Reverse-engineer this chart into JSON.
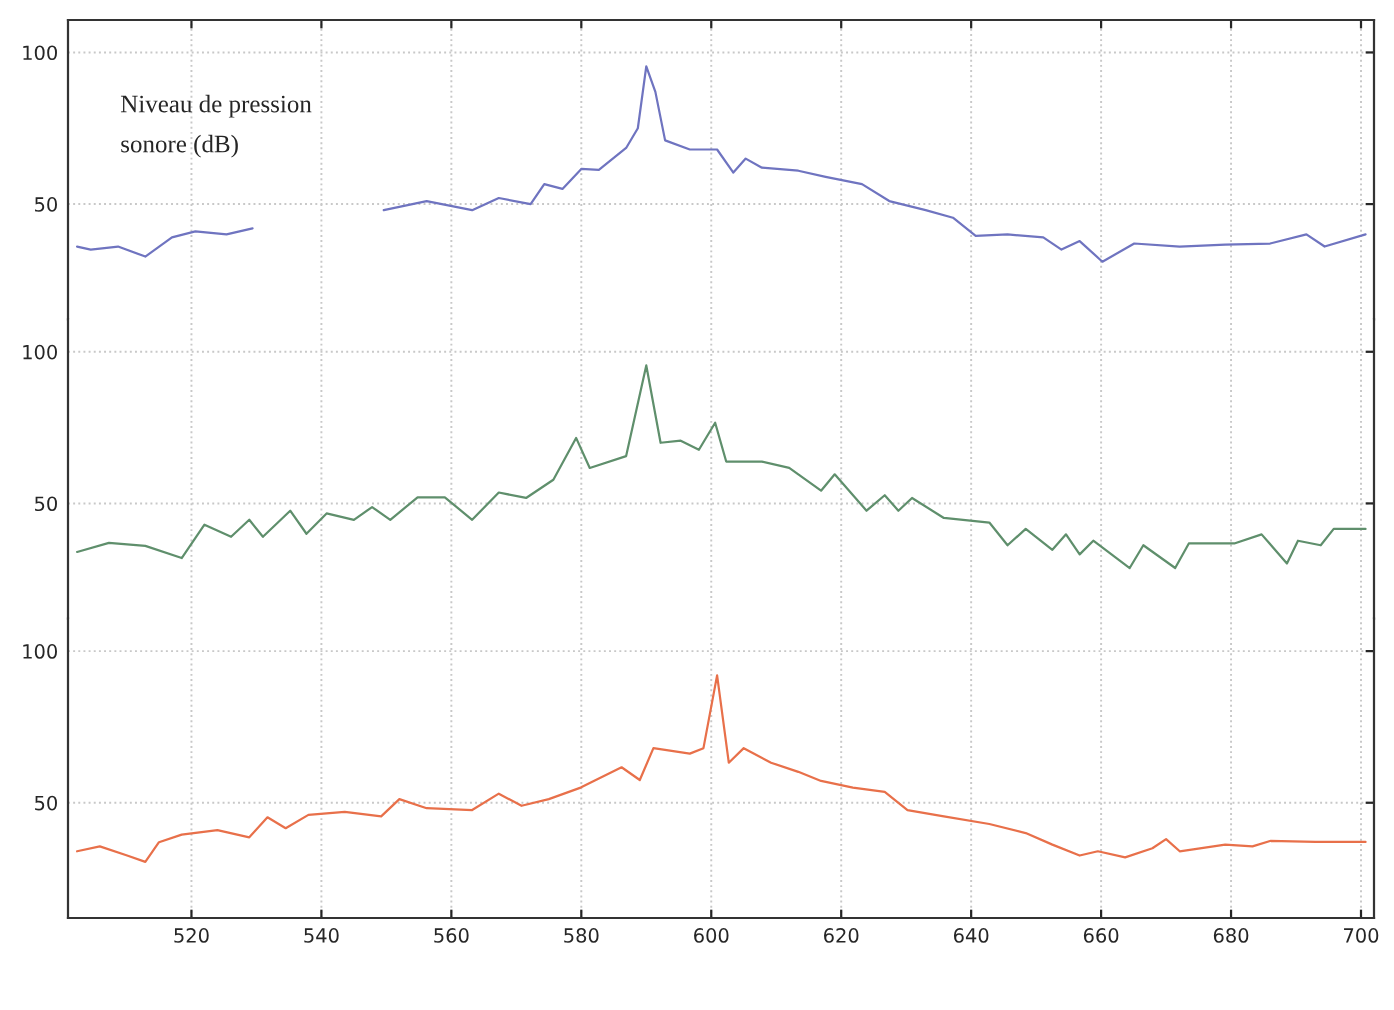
{
  "chart_data": [
    {
      "type": "line",
      "annotations": [
        "Niveau de pression\nsonore (dB)"
      ],
      "xlim": [
        501,
        702
      ],
      "xticks": [
        520,
        540,
        560,
        580,
        600,
        620,
        640,
        660,
        680,
        700
      ],
      "ylim": [
        12,
        110.7
      ],
      "yticks": [
        50,
        100
      ],
      "grid": true,
      "tick_labels": "y",
      "x": [
        502.4,
        504.5,
        508.7,
        512.9,
        517,
        520.6,
        525.4,
        529.4,
        539,
        549.6,
        556.2,
        563.2,
        567.3,
        572.2,
        574.3,
        577.1,
        580,
        582.7,
        586.9,
        588.7,
        590,
        591.4,
        592.9,
        596.7,
        600.9,
        603.4,
        605.3,
        607.8,
        613.4,
        617.6,
        623.2,
        627.4,
        633,
        637.2,
        640.7,
        645.6,
        651.1,
        653.9,
        656.7,
        660.2,
        665.1,
        672.1,
        679.1,
        686,
        691.6,
        694.4,
        700.7
      ],
      "series": [
        {
          "color": "#6f74c0",
          "values": [
            36,
            35,
            36,
            32.7,
            39,
            41,
            40,
            42,
            null,
            48,
            51,
            48,
            52,
            50,
            56.6,
            55,
            61.6,
            61.3,
            68.5,
            75,
            95.4,
            87,
            71,
            68,
            68,
            60.4,
            65,
            62,
            61,
            59,
            56.6,
            51,
            48,
            45.5,
            39.5,
            40,
            39,
            35,
            37.8,
            31,
            37,
            36,
            36.6,
            37,
            40,
            36,
            40
          ]
        }
      ]
    },
    {
      "type": "line",
      "xlim": [
        501,
        702
      ],
      "xticks": [
        520,
        540,
        560,
        580,
        600,
        620,
        640,
        660,
        680,
        700
      ],
      "ylim": [
        12,
        110.7
      ],
      "yticks": [
        50,
        100
      ],
      "grid": true,
      "tick_labels": "y",
      "x": [
        502.4,
        507.3,
        512.9,
        518.5,
        522,
        526.1,
        528.9,
        531,
        535.2,
        537.7,
        540.8,
        545,
        547.8,
        550.6,
        554.8,
        559,
        563.2,
        567.3,
        571.5,
        575.7,
        579.2,
        581.3,
        586.9,
        590,
        592.2,
        595.3,
        598.1,
        600.6,
        602.3,
        607.8,
        612,
        616.9,
        619,
        623.9,
        626.7,
        628.8,
        630.9,
        635.8,
        642.8,
        645.6,
        648.4,
        652.5,
        654.6,
        656.7,
        658.8,
        664.4,
        666.5,
        671.4,
        673.5,
        680.5,
        684.7,
        688.6,
        690.3,
        693.8,
        695.8,
        700.7
      ],
      "series": [
        {
          "color": "#5f8f6c",
          "values": [
            34,
            37,
            36,
            32,
            43,
            39,
            44.6,
            39,
            47.6,
            40,
            46.7,
            44.6,
            48.8,
            44.6,
            52,
            52,
            44.6,
            53.6,
            51.8,
            57.8,
            71.6,
            61.7,
            65.6,
            95.5,
            70,
            70.7,
            67.7,
            76.6,
            63.8,
            63.8,
            61.7,
            54.2,
            59.6,
            47.6,
            52.7,
            47.6,
            51.8,
            45.2,
            43.7,
            36.2,
            41.6,
            34.7,
            39.8,
            33.2,
            37.7,
            28.7,
            36.2,
            28.7,
            36.8,
            36.8,
            39.8,
            30.2,
            37.7,
            36.2,
            41.6,
            41.6
          ]
        }
      ]
    },
    {
      "type": "line",
      "xlim": [
        501,
        702
      ],
      "xticks": [
        520,
        540,
        560,
        580,
        600,
        620,
        640,
        660,
        680,
        700
      ],
      "ylim": [
        12,
        110.7
      ],
      "yticks": [
        50,
        100
      ],
      "grid": true,
      "x": [
        502.4,
        505.9,
        510.1,
        512.9,
        515,
        518.5,
        524,
        528.9,
        531.7,
        534.5,
        538,
        543.6,
        549.2,
        552,
        556.2,
        563.2,
        567.3,
        570.8,
        575,
        579.9,
        586.2,
        589,
        591.1,
        596.7,
        598.8,
        600.9,
        602.7,
        605,
        609.2,
        613.4,
        616.9,
        621.8,
        626.7,
        630.2,
        635.8,
        642.8,
        648.4,
        652.5,
        656.7,
        659.5,
        663.7,
        667.9,
        670,
        672.1,
        679.1,
        683.3,
        686,
        693,
        700.7
      ],
      "series": [
        {
          "color": "#e8704a",
          "values": [
            34,
            35.6,
            32.6,
            30.5,
            37,
            39.5,
            41,
            38.6,
            45.2,
            41.6,
            46,
            47,
            45.5,
            51.2,
            48.2,
            47.6,
            53,
            49,
            51.2,
            55,
            61.7,
            57.5,
            68,
            66.2,
            68,
            92,
            63.2,
            68,
            63.2,
            60.2,
            57.2,
            55,
            53.6,
            47.6,
            45.5,
            43,
            40,
            36.2,
            32.6,
            34,
            32,
            35,
            38,
            34,
            36.2,
            35.6,
            37.4,
            37.1,
            37.1
          ]
        }
      ]
    }
  ]
}
